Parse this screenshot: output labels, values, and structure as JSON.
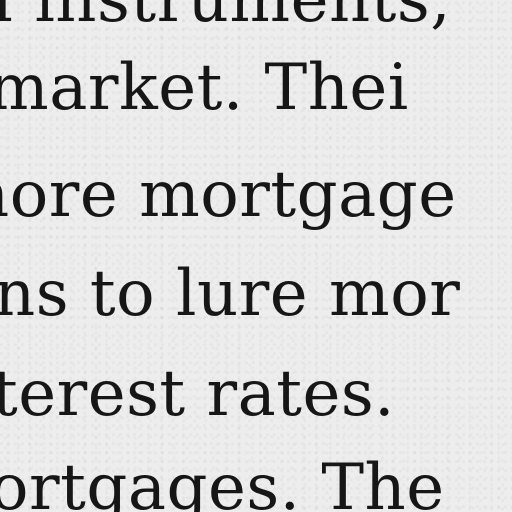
{
  "document": {
    "lines": [
      "d instruments,",
      "market.  Thei",
      "nore mortgage",
      "ns to lure mor",
      "terest rates.",
      "ortgages. The"
    ]
  }
}
